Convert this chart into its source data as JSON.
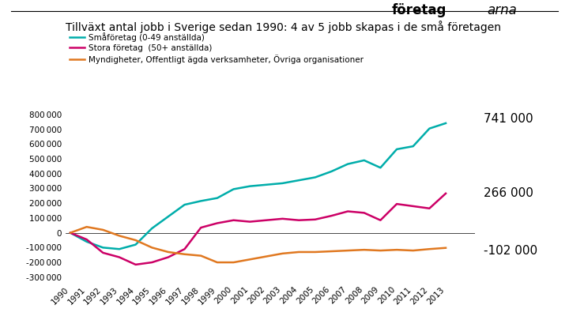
{
  "title": "Tillväxt antal jobb i Sverige sedan 1990: 4 av 5 jobb skapas i de små företagen",
  "years": [
    1990,
    1991,
    1992,
    1993,
    1994,
    1995,
    1996,
    1997,
    1998,
    1999,
    2000,
    2001,
    2002,
    2003,
    2004,
    2005,
    2006,
    2007,
    2008,
    2009,
    2010,
    2011,
    2012,
    2013
  ],
  "smaforetag": [
    0,
    -60000,
    -100000,
    -110000,
    -80000,
    30000,
    110000,
    190000,
    215000,
    235000,
    295000,
    315000,
    325000,
    335000,
    355000,
    375000,
    415000,
    465000,
    490000,
    440000,
    565000,
    585000,
    705000,
    741000
  ],
  "storaforetag": [
    0,
    -45000,
    -135000,
    -165000,
    -215000,
    -200000,
    -165000,
    -110000,
    35000,
    65000,
    85000,
    75000,
    85000,
    95000,
    85000,
    90000,
    115000,
    145000,
    135000,
    85000,
    195000,
    180000,
    165000,
    266000
  ],
  "myndigheter": [
    0,
    40000,
    20000,
    -20000,
    -50000,
    -100000,
    -130000,
    -145000,
    -155000,
    -200000,
    -200000,
    -180000,
    -160000,
    -140000,
    -130000,
    -130000,
    -125000,
    -120000,
    -115000,
    -120000,
    -115000,
    -120000,
    -110000,
    -102000
  ],
  "color_sma": "#00ADAA",
  "color_stora": "#CC0066",
  "color_myn": "#E07820",
  "yticks": [
    -300000,
    -200000,
    -100000,
    0,
    100000,
    200000,
    300000,
    400000,
    500000,
    600000,
    700000,
    800000
  ],
  "ylim": [
    -330000,
    860000
  ],
  "xlim_left": 1989.7,
  "xlim_right": 2014.8,
  "legend_sma": "Småföretag (0-49 anställda)",
  "legend_stora": "Stora företag  (50+ anställda)",
  "legend_myn": "Myndigheter, Offentligt ägda verksamheter, Övriga organisationer",
  "annotation_sma": "741 000",
  "annotation_stora": "266 000",
  "annotation_myn": "-102 000",
  "background_color": "#FFFFFF",
  "linewidth": 1.8,
  "annotation_fontsize": 11,
  "title_fontsize": 10,
  "legend_fontsize": 7.5,
  "tick_fontsize": 7.5
}
